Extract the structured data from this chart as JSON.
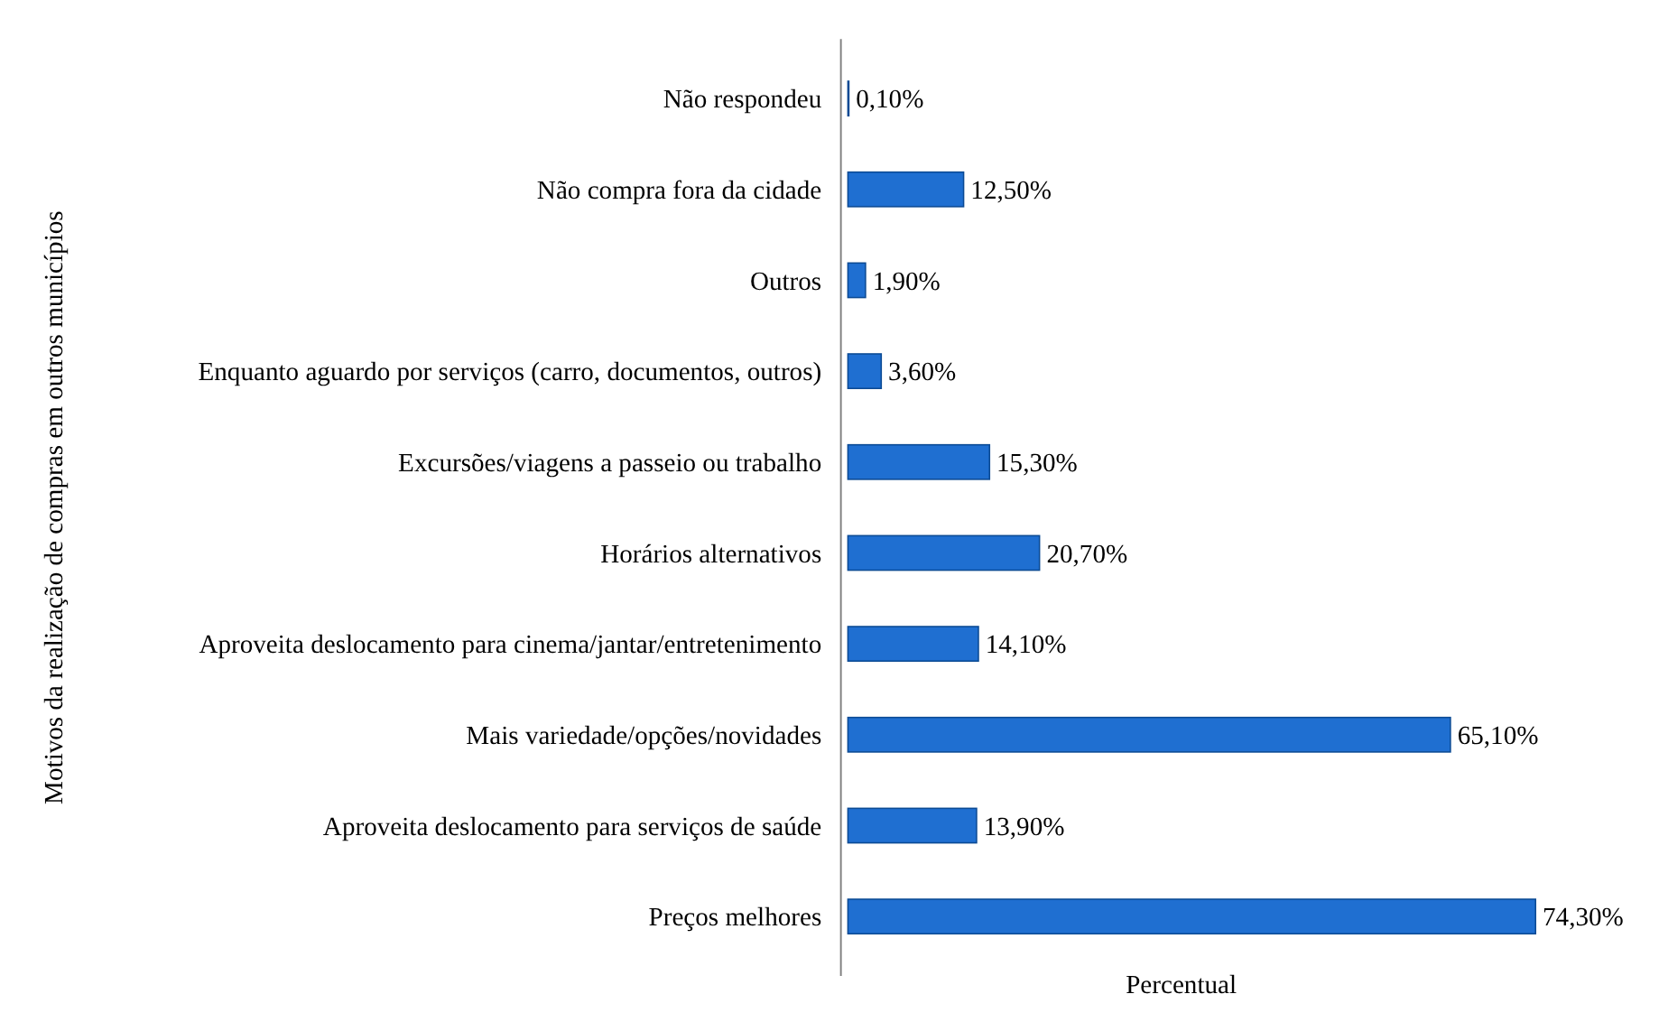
{
  "chart_data": {
    "type": "bar",
    "orientation": "horizontal",
    "ylabel": "Motivos da realização  de compras em outros municípios",
    "xlabel": "Percentual",
    "categories": [
      "Não respondeu",
      "Não compra fora da cidade",
      "Outros",
      "Enquanto aguardo por serviços (carro, documentos, outros)",
      "Excursões/viagens a passeio ou trabalho",
      "Horários alternativos",
      "Aproveita deslocamento para cinema/jantar/entretenimento",
      "Mais variedade/opções/novidades",
      "Aproveita deslocamento para serviços de saúde",
      "Preços melhores"
    ],
    "values": [
      0.1,
      12.5,
      1.9,
      3.6,
      15.3,
      20.7,
      14.1,
      65.1,
      13.9,
      74.3
    ],
    "value_labels": [
      "0,10%",
      "12,50%",
      "1,90%",
      "3,60%",
      "15,30%",
      "20,70%",
      "14,10%",
      "65,10%",
      "13,90%",
      "74,30%"
    ],
    "color": "#1f6fd1",
    "tick_labels": "y"
  }
}
